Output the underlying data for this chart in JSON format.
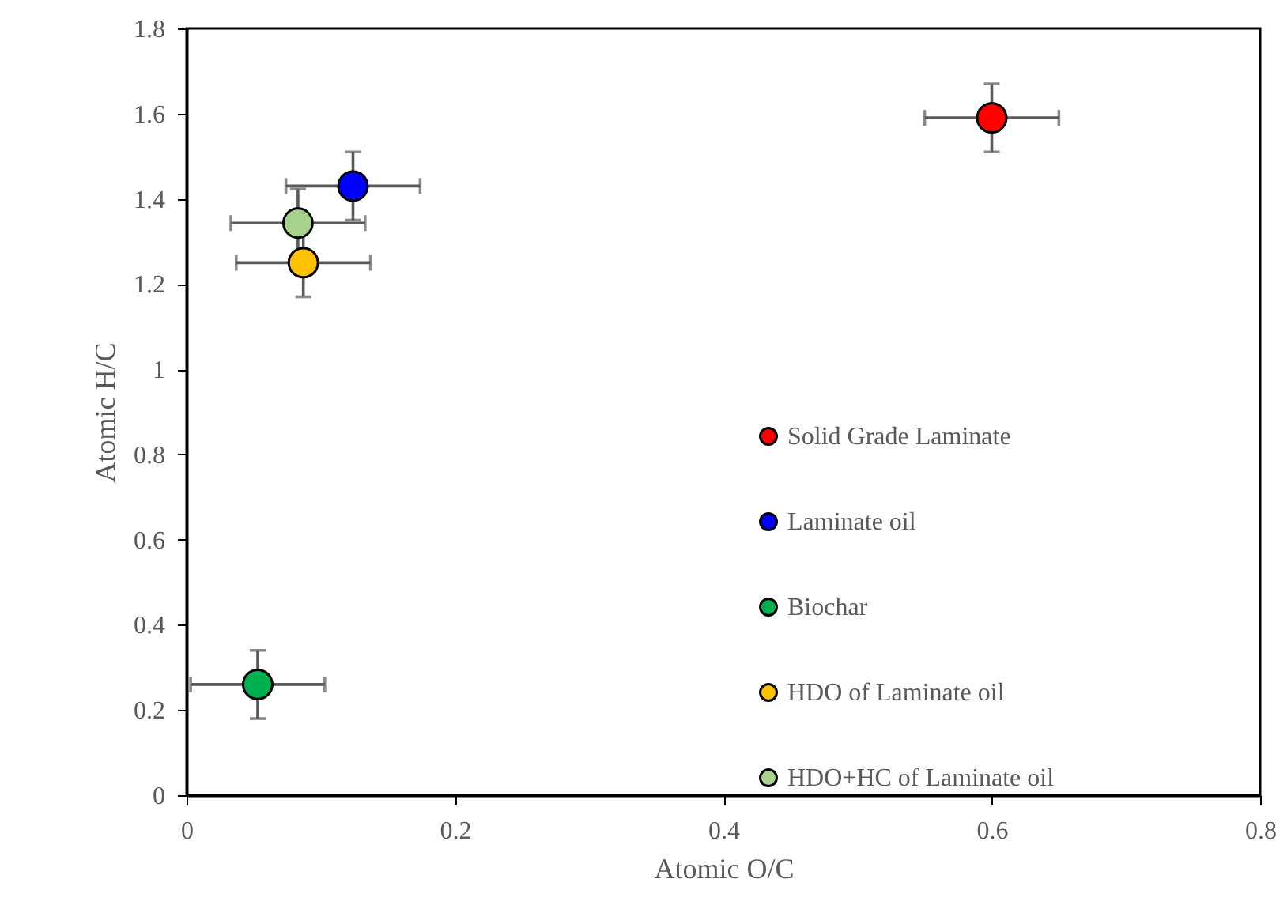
{
  "chart_data": {
    "type": "scatter",
    "xlabel": "Atomic O/C",
    "ylabel": "Atomic H/C",
    "xlim": [
      0,
      0.8
    ],
    "xticks": [
      0,
      0.2,
      0.4,
      0.6,
      0.8
    ],
    "ylim": [
      0,
      1.8
    ],
    "yticks": [
      0,
      0.2,
      0.4,
      0.6,
      0.8,
      1,
      1.2,
      1.4,
      1.6,
      1.8
    ],
    "grid": false,
    "legend": "bottom right",
    "marker": "circle",
    "series": [
      {
        "name": "Solid Grade Laminate",
        "color": "#ff0000",
        "x": [
          0.6
        ],
        "values": [
          1.59
        ],
        "errors": [
          0.08
        ],
        "xerrors": [
          0.05
        ]
      },
      {
        "name": "Laminate oil",
        "color": "#0000ff",
        "x": [
          0.124
        ],
        "values": [
          1.43
        ],
        "errors": [
          0.08
        ],
        "xerrors": [
          0.05
        ]
      },
      {
        "name": "Biochar",
        "color": "#00b050",
        "x": [
          0.053
        ],
        "values": [
          0.26
        ],
        "errors": [
          0.08
        ],
        "xerrors": [
          0.05
        ]
      },
      {
        "name": "HDO of Laminate oil",
        "color": "#ffc000",
        "x": [
          0.087
        ],
        "values": [
          1.25
        ],
        "errors": [
          0.08
        ],
        "xerrors": [
          0.05
        ]
      },
      {
        "name": "HDO+HC of Laminate oil",
        "color": "#a9d18e",
        "x": [
          0.083
        ],
        "values": [
          1.343
        ],
        "errors": [
          0.08
        ],
        "xerrors": [
          0.05
        ]
      }
    ]
  }
}
